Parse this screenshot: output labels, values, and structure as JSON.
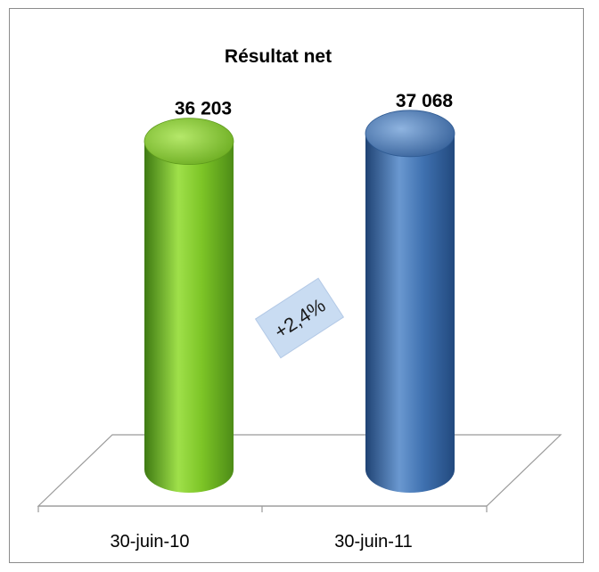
{
  "chart_data": {
    "type": "bar",
    "title": "Résultat net",
    "categories": [
      "30-juin-10",
      "30-juin-11"
    ],
    "values": [
      36203,
      37068
    ],
    "value_labels": [
      "36 203",
      "37 068"
    ],
    "ylim": [
      0,
      40000
    ],
    "colors": [
      "#7dc225",
      "#3f71b0"
    ],
    "annotation": "+2,4%",
    "grid": false,
    "legend": "none"
  }
}
